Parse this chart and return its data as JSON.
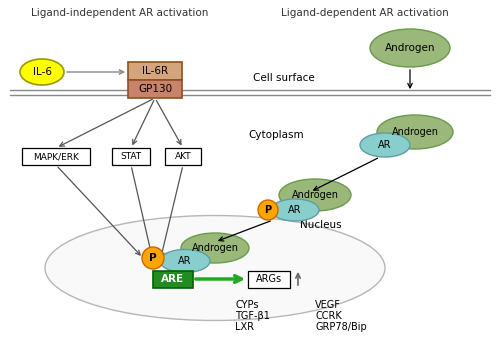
{
  "title_left": "Ligand-independent AR activation",
  "title_right": "Ligand-dependent AR activation",
  "cell_surface_label": "Cell surface",
  "cytoplasm_label": "Cytoplasm",
  "nucleus_label": "Nucleus",
  "bg_color": "#ffffff",
  "colors": {
    "IL6_ellipse": "#ffff00",
    "IL6R_box": "#d4a47a",
    "GP130_box": "#c8836a",
    "kinase_box": "#ffffff",
    "androgen_ellipse": "#9ab87a",
    "androgen_ellipse_edge": "#6a9a4a",
    "AR_ellipse": "#87cecc",
    "AR_ellipse_edge": "#5f9ea0",
    "P_circle": "#ffa500",
    "P_circle_edge": "#cc6600",
    "ARE_box": "#228b22",
    "ARGs_box": "#ffffff",
    "cell_membrane_line": "#888888",
    "nucleus_edge": "#888888",
    "arrow_green": "#22aa22",
    "arrow_gray": "#888888",
    "arrow_black": "#000000"
  },
  "text_colors": {
    "titles": "#333333",
    "labels": "#000000",
    "white_text": "#ffffff",
    "dark_text": "#000000"
  },
  "gene_list_left": [
    "CYPs",
    "TGF-β1",
    "LXR"
  ],
  "gene_list_right": [
    "VEGF",
    "CCRK",
    "GRP78/Bip"
  ]
}
